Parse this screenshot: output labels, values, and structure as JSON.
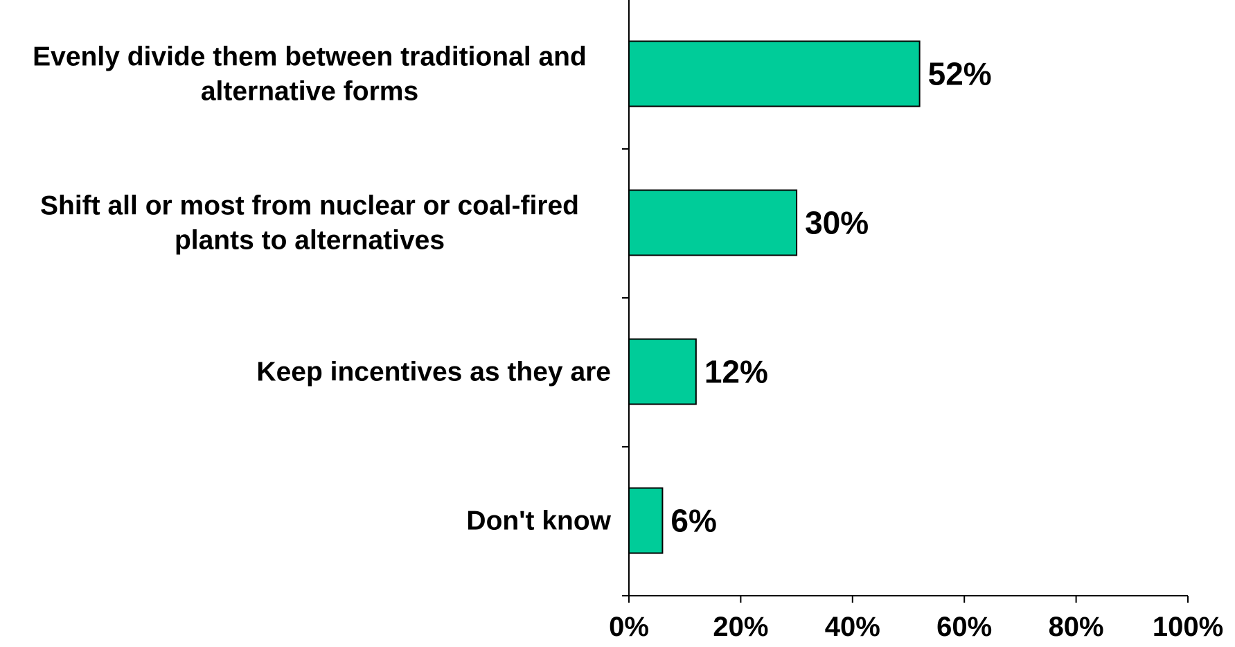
{
  "chart_data": {
    "type": "bar",
    "orientation": "horizontal",
    "categories": [
      [
        "Evenly divide them between traditional and",
        "alternative forms"
      ],
      [
        "Shift all or most from nuclear or coal-fired",
        "plants to alternatives"
      ],
      [
        "Keep incentives as they are"
      ],
      [
        "Don't know"
      ]
    ],
    "values": [
      52,
      30,
      12,
      6
    ],
    "value_labels": [
      "52%",
      "30%",
      "12%",
      "6%"
    ],
    "xlim": [
      0,
      100
    ],
    "x_ticks": [
      0,
      20,
      40,
      60,
      80,
      100
    ],
    "x_tick_labels": [
      "0%",
      "20%",
      "40%",
      "60%",
      "80%",
      "100%"
    ],
    "title": "",
    "xlabel": "",
    "ylabel": "",
    "grid": false,
    "legend": "none",
    "colors": {
      "bar_fill": "#00CC99",
      "bar_stroke": "#000000",
      "axis": "#000000",
      "text": "#000000"
    }
  }
}
